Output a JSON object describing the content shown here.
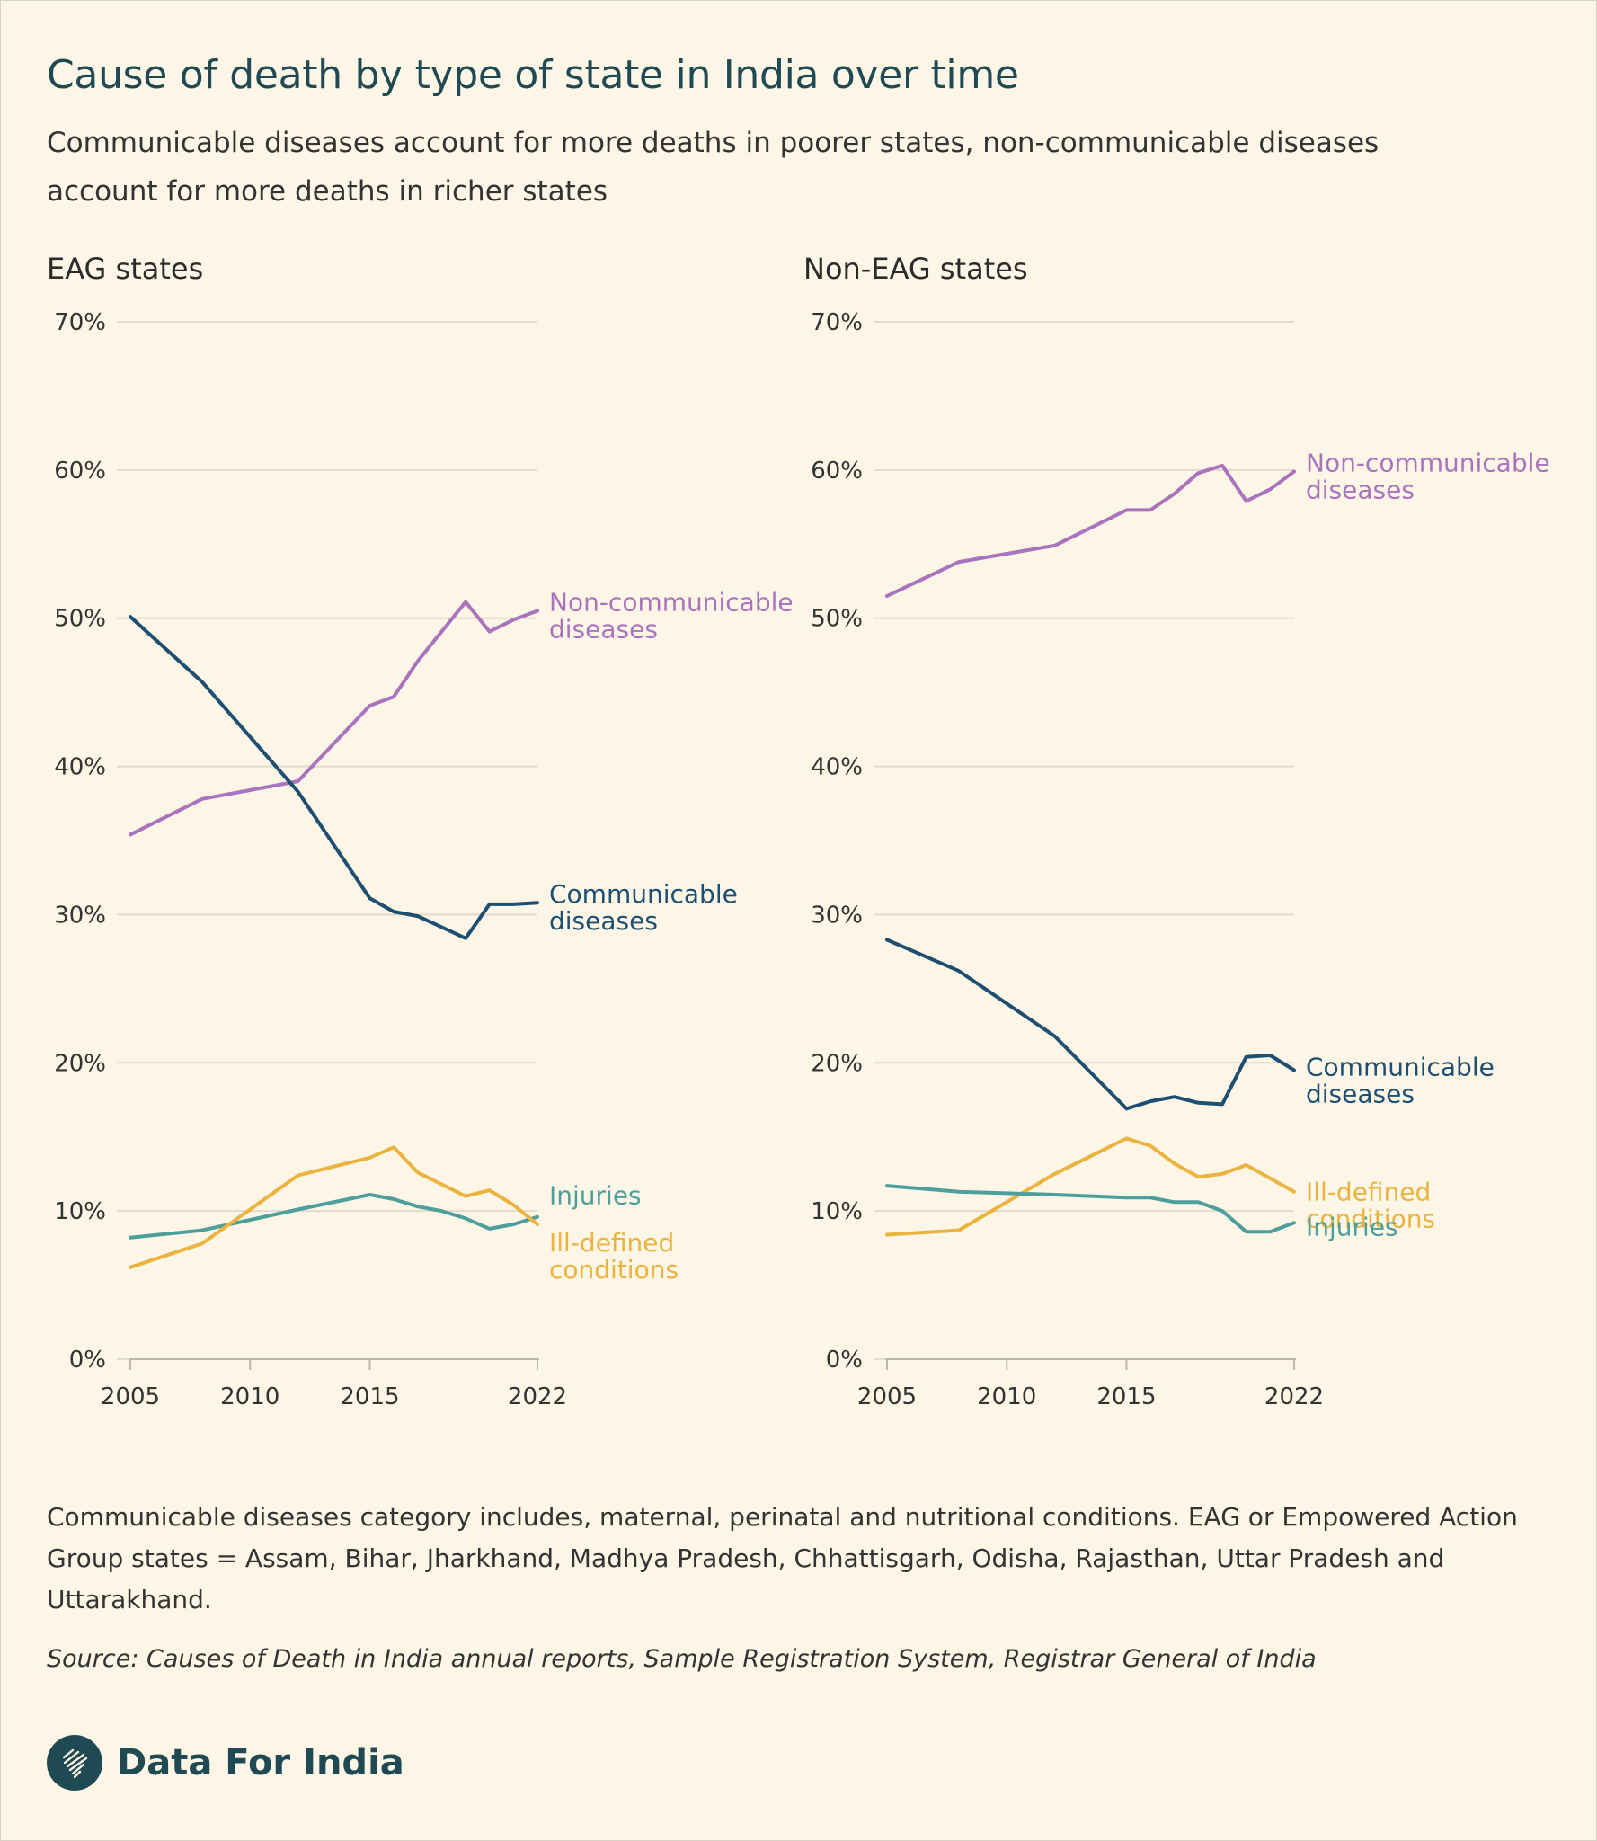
{
  "title": "Cause of death by type of state in India over time",
  "subtitle": "Communicable diseases account for more deaths in poorer states, non-communicable diseases account for more deaths in richer states",
  "note": "Communicable diseases category includes, maternal, perinatal and nutritional conditions. EAG or Empowered Action Group states = Assam, Bihar, Jharkhand, Madhya Pradesh, Chhattisgarh, Odisha, Rajasthan, Uttar Pradesh and Uttarakhand.",
  "source": "Source: Causes of Death in India annual reports, Sample Registration System, Registrar General of India",
  "brand": {
    "name": "Data For India"
  },
  "colors": {
    "non_communicable": "#a974bd",
    "communicable": "#1e4f72",
    "injuries": "#4e9e9c",
    "ill_defined": "#ebb33f"
  },
  "chart_data": [
    {
      "type": "line",
      "title": "EAG states",
      "xlabel": "",
      "ylabel": "",
      "xlim": [
        2005,
        2022
      ],
      "ylim": [
        0,
        70
      ],
      "x_ticks": [
        2005,
        2010,
        2015,
        2022
      ],
      "y_ticks": [
        "0%",
        "10%",
        "20%",
        "30%",
        "40%",
        "50%",
        "60%",
        "70%"
      ],
      "y_tick_values": [
        0,
        10,
        20,
        30,
        40,
        50,
        60,
        70
      ],
      "series": [
        {
          "name": "Non-communicable diseases",
          "label_lines": [
            "Non-communicable",
            "diseases"
          ],
          "color": "#a974bd",
          "x": [
            2005,
            2008,
            2012,
            2015,
            2016,
            2017,
            2019,
            2020,
            2021,
            2022
          ],
          "values": [
            35.4,
            37.8,
            39.0,
            44.1,
            44.7,
            47.1,
            51.1,
            49.1,
            49.9,
            50.5
          ]
        },
        {
          "name": "Communicable diseases",
          "label_lines": [
            "Communicable",
            "diseases"
          ],
          "color": "#1e4f72",
          "x": [
            2005,
            2008,
            2012,
            2015,
            2016,
            2017,
            2019,
            2020,
            2021,
            2022
          ],
          "values": [
            50.1,
            45.7,
            38.3,
            31.1,
            30.2,
            29.9,
            28.4,
            30.7,
            30.7,
            30.8
          ]
        },
        {
          "name": "Injuries",
          "label_lines": [
            "Injuries"
          ],
          "color": "#4e9e9c",
          "x": [
            2005,
            2008,
            2012,
            2015,
            2016,
            2017,
            2018,
            2019,
            2020,
            2021,
            2022
          ],
          "values": [
            8.2,
            8.7,
            10.1,
            11.1,
            10.8,
            10.3,
            10.0,
            9.5,
            8.8,
            9.1,
            9.6
          ]
        },
        {
          "name": "Ill-defined conditions",
          "label_lines": [
            "Ill-defined",
            "conditions"
          ],
          "color": "#ebb33f",
          "x": [
            2005,
            2008,
            2012,
            2015,
            2016,
            2017,
            2018,
            2019,
            2020,
            2021,
            2022
          ],
          "values": [
            6.2,
            7.8,
            12.4,
            13.6,
            14.3,
            12.6,
            11.8,
            11.0,
            11.4,
            10.4,
            9.1
          ]
        }
      ]
    },
    {
      "type": "line",
      "title": "Non-EAG states",
      "xlabel": "",
      "ylabel": "",
      "xlim": [
        2005,
        2022
      ],
      "ylim": [
        0,
        70
      ],
      "x_ticks": [
        2005,
        2010,
        2015,
        2022
      ],
      "y_ticks": [
        "0%",
        "10%",
        "20%",
        "30%",
        "40%",
        "50%",
        "60%",
        "70%"
      ],
      "y_tick_values": [
        0,
        10,
        20,
        30,
        40,
        50,
        60,
        70
      ],
      "series": [
        {
          "name": "Non-communicable diseases",
          "label_lines": [
            "Non-communicable",
            "diseases"
          ],
          "color": "#a974bd",
          "x": [
            2005,
            2008,
            2012,
            2015,
            2016,
            2017,
            2018,
            2019,
            2020,
            2021,
            2022
          ],
          "values": [
            51.5,
            53.8,
            54.9,
            57.3,
            57.3,
            58.4,
            59.8,
            60.3,
            57.9,
            58.7,
            59.9
          ]
        },
        {
          "name": "Communicable diseases",
          "label_lines": [
            "Communicable",
            "diseases"
          ],
          "color": "#1e4f72",
          "x": [
            2005,
            2008,
            2012,
            2015,
            2016,
            2017,
            2018,
            2019,
            2020,
            2021,
            2022
          ],
          "values": [
            28.3,
            26.2,
            21.8,
            16.9,
            17.4,
            17.7,
            17.3,
            17.2,
            20.4,
            20.5,
            19.5
          ]
        },
        {
          "name": "Ill-defined conditions",
          "label_lines": [
            "Ill-defined",
            "conditions"
          ],
          "color": "#ebb33f",
          "x": [
            2005,
            2008,
            2012,
            2015,
            2016,
            2017,
            2018,
            2019,
            2020,
            2021,
            2022
          ],
          "values": [
            8.4,
            8.7,
            12.5,
            14.9,
            14.4,
            13.2,
            12.3,
            12.5,
            13.1,
            12.2,
            11.3
          ]
        },
        {
          "name": "Injuries",
          "label_lines": [
            "Injuries"
          ],
          "color": "#4e9e9c",
          "x": [
            2005,
            2008,
            2012,
            2015,
            2016,
            2017,
            2018,
            2019,
            2020,
            2021,
            2022
          ],
          "values": [
            11.7,
            11.3,
            11.1,
            10.9,
            10.9,
            10.6,
            10.6,
            10.0,
            8.6,
            8.6,
            9.2
          ]
        }
      ]
    }
  ]
}
